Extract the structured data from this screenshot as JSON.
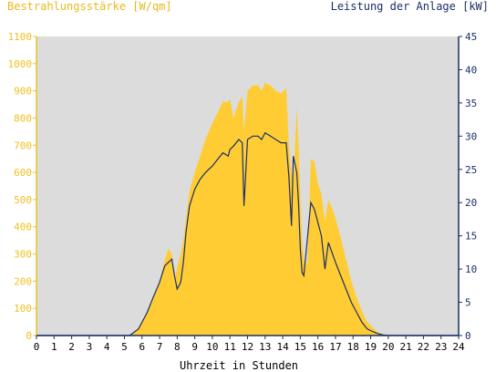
{
  "chart_data": {
    "type": "area",
    "left_axis_title": "Bestrahlungsstärke [W/qm]",
    "right_axis_title": "Leistung der Anlage [kW]",
    "xlabel": "Uhrzeit in Stunden",
    "xlim": [
      0,
      24
    ],
    "ylim_left": [
      0,
      1100
    ],
    "ylim_right": [
      0,
      45
    ],
    "x_ticks": [
      "0",
      "1",
      "2",
      "3",
      "4",
      "5",
      "6",
      "7",
      "8",
      "9",
      "10",
      "11",
      "12",
      "13",
      "14",
      "15",
      "16",
      "17",
      "18",
      "19",
      "20",
      "21",
      "22",
      "23",
      "24"
    ],
    "left_ticks": [
      "0",
      "100",
      "200",
      "300",
      "400",
      "500",
      "600",
      "700",
      "800",
      "900",
      "1000",
      "1100"
    ],
    "right_ticks": [
      "0",
      "5",
      "10",
      "15",
      "20",
      "25",
      "30",
      "35",
      "40",
      "45"
    ],
    "colors": {
      "plot_background": "#dcdcdc",
      "irradiance_fill": "#ffcc33",
      "power_line": "#1a2f6a",
      "left_axis": "#f0c020",
      "right_axis": "#1a2f6a"
    },
    "series": [
      {
        "axis": "left",
        "style": "area",
        "x": [
          0,
          5.3,
          5.5,
          5.8,
          6.0,
          6.3,
          6.6,
          7.0,
          7.3,
          7.5,
          7.7,
          7.85,
          8.0,
          8.2,
          8.35,
          8.5,
          8.7,
          9.0,
          9.3,
          9.6,
          10.0,
          10.3,
          10.6,
          10.9,
          11.0,
          11.2,
          11.5,
          11.7,
          11.8,
          12.0,
          12.3,
          12.6,
          12.8,
          13.0,
          13.3,
          13.6,
          13.9,
          14.2,
          14.35,
          14.5,
          14.6,
          14.8,
          14.9,
          15.0,
          15.1,
          15.2,
          15.4,
          15.6,
          15.8,
          16.0,
          16.2,
          16.4,
          16.6,
          16.8,
          17.0,
          17.3,
          17.6,
          17.9,
          18.2,
          18.5,
          18.8,
          19.1,
          19.4,
          19.7,
          20.0,
          24
        ],
        "y": [
          0,
          0,
          10,
          30,
          55,
          90,
          140,
          200,
          280,
          320,
          300,
          200,
          250,
          300,
          350,
          430,
          530,
          600,
          660,
          720,
          780,
          820,
          860,
          860,
          870,
          800,
          860,
          880,
          750,
          900,
          920,
          920,
          900,
          930,
          920,
          900,
          890,
          910,
          700,
          600,
          560,
          840,
          700,
          520,
          350,
          280,
          260,
          650,
          640,
          560,
          520,
          420,
          500,
          470,
          430,
          360,
          280,
          200,
          140,
          90,
          50,
          30,
          12,
          5,
          0,
          0
        ]
      },
      {
        "axis": "right",
        "style": "line",
        "x": [
          0,
          5.3,
          5.5,
          5.8,
          6.0,
          6.3,
          6.6,
          7.0,
          7.3,
          7.5,
          7.7,
          7.85,
          8.0,
          8.2,
          8.35,
          8.5,
          8.7,
          9.0,
          9.3,
          9.6,
          10.0,
          10.3,
          10.6,
          10.9,
          11.0,
          11.2,
          11.5,
          11.7,
          11.8,
          12.0,
          12.3,
          12.6,
          12.8,
          13.0,
          13.3,
          13.6,
          13.9,
          14.2,
          14.35,
          14.5,
          14.6,
          14.8,
          14.9,
          15.0,
          15.1,
          15.2,
          15.4,
          15.6,
          15.8,
          16.0,
          16.2,
          16.4,
          16.6,
          16.8,
          17.0,
          17.3,
          17.6,
          17.9,
          18.2,
          18.5,
          18.8,
          19.1,
          19.4,
          19.7,
          20.0,
          24
        ],
        "y": [
          0,
          0,
          0.4,
          1.0,
          2.0,
          3.5,
          5.5,
          8.0,
          10.5,
          11.0,
          11.5,
          9.0,
          7.0,
          8.0,
          11.0,
          15.5,
          19.5,
          22.0,
          23.5,
          24.5,
          25.5,
          26.5,
          27.5,
          27.0,
          28.0,
          28.5,
          29.5,
          29.0,
          19.5,
          29.5,
          30.0,
          30.0,
          29.5,
          30.5,
          30.0,
          29.5,
          29.0,
          29.0,
          24.0,
          16.5,
          27.0,
          24.5,
          20.0,
          13.0,
          9.5,
          9.0,
          14.5,
          20.0,
          19.0,
          17.0,
          15.0,
          10.0,
          14.0,
          12.5,
          11.0,
          9.0,
          7.0,
          5.0,
          3.5,
          2.0,
          1.0,
          0.6,
          0.3,
          0.1,
          0,
          0
        ]
      }
    ]
  }
}
